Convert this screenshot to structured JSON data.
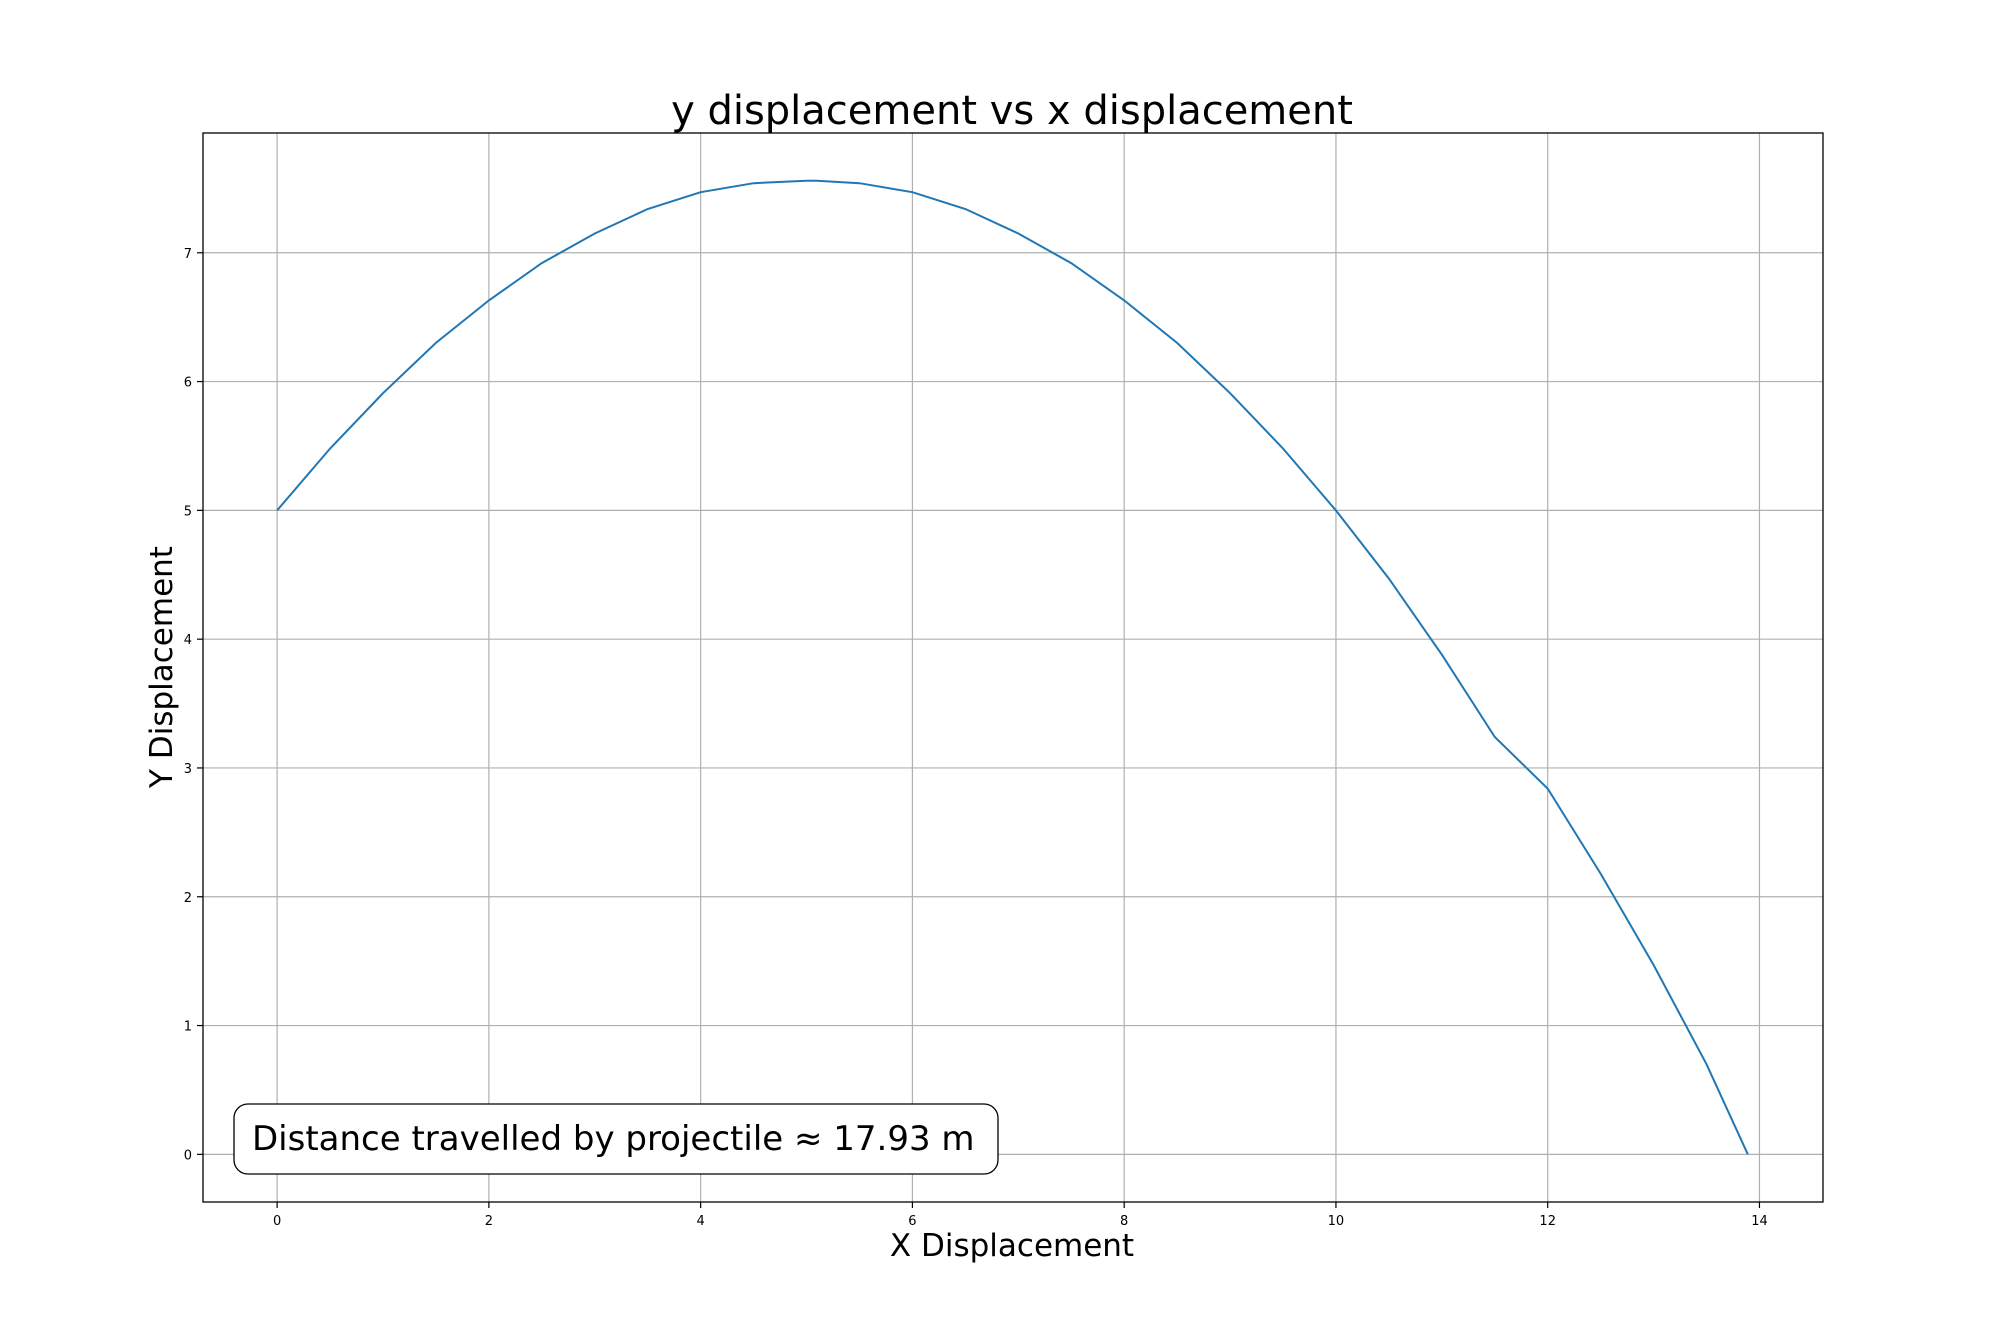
{
  "chart_data": {
    "type": "line",
    "title": "y displacement vs x displacement",
    "xlabel": "X Displacement",
    "ylabel": "Y Displacement",
    "xlim": [
      -0.7,
      14.6
    ],
    "ylim": [
      -0.37,
      7.93
    ],
    "xticks": [
      0,
      2,
      4,
      6,
      8,
      10,
      12,
      14
    ],
    "yticks": [
      0,
      1,
      2,
      3,
      4,
      5,
      6,
      7
    ],
    "grid": true,
    "series": [
      {
        "color": "#1f77b4",
        "x": [
          0,
          0.5,
          1,
          1.5,
          2,
          2.5,
          3,
          3.5,
          4,
          4.5,
          5,
          5.1,
          5.5,
          6,
          6.5,
          7,
          7.5,
          8,
          8.5,
          9,
          9.5,
          10,
          10.5,
          11,
          11.5,
          12,
          12.5,
          13,
          13.5,
          13.89
        ],
        "y": [
          5.0,
          5.48,
          5.91,
          6.3,
          6.63,
          6.92,
          7.15,
          7.34,
          7.47,
          7.54,
          7.56,
          7.56,
          7.54,
          7.47,
          7.34,
          7.15,
          6.92,
          6.63,
          6.3,
          5.91,
          5.48,
          5.0,
          4.47,
          3.88,
          3.24,
          2.84,
          2.18,
          1.47,
          0.7,
          0.0
        ]
      }
    ],
    "annotation": {
      "text": "Distance travelled by projectile $\\approx$ 17.93 m",
      "display": "Distance travelled by projectile  ≈  17.93 m",
      "placement": "bottom-left"
    }
  }
}
